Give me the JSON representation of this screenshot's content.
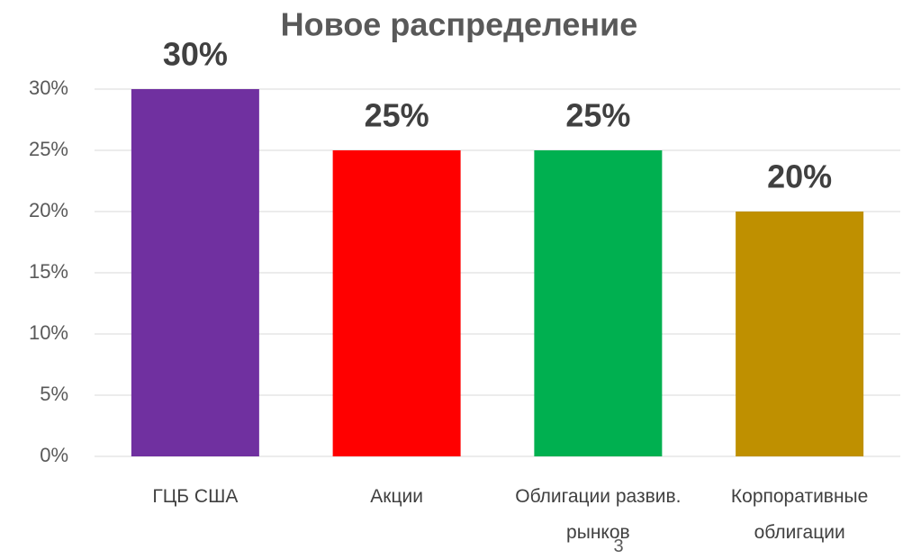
{
  "chart_data": {
    "type": "bar",
    "title": "Новое распределение",
    "categories": [
      "ГЦБ США",
      "Акции",
      "Облигации развив. рынков",
      "Корпоративные облигации"
    ],
    "values": [
      30,
      25,
      25,
      20
    ],
    "value_labels": [
      "30%",
      "25%",
      "25%",
      "20%"
    ],
    "colors": [
      "#7030a0",
      "#ff0000",
      "#00b050",
      "#bf9000"
    ],
    "ylim": [
      0,
      30
    ],
    "yticks": [
      {
        "value": 0,
        "label": "0%"
      },
      {
        "value": 5,
        "label": "5%"
      },
      {
        "value": 10,
        "label": "10%"
      },
      {
        "value": 15,
        "label": "15%"
      },
      {
        "value": 20,
        "label": "20%"
      },
      {
        "value": 25,
        "label": "25%"
      },
      {
        "value": 30,
        "label": "30%"
      }
    ],
    "grid": true
  },
  "page_number": "3"
}
